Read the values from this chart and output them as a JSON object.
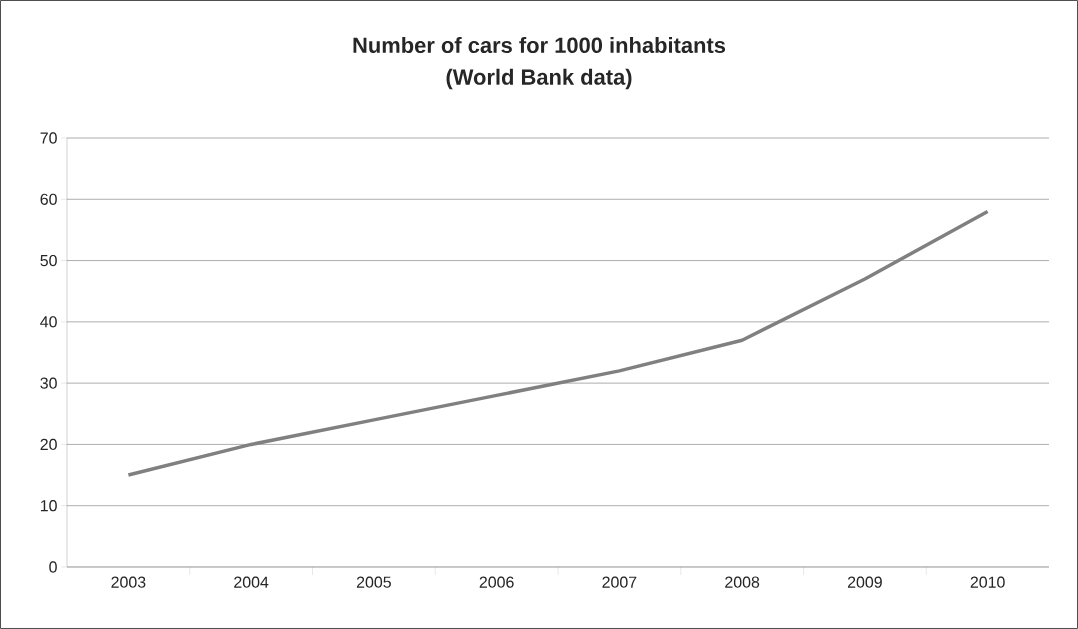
{
  "chart_data": {
    "type": "line",
    "title": "Number of cars for 1000 inhabitants",
    "subtitle": "(World Bank data)",
    "categories": [
      "2003",
      "2004",
      "2005",
      "2006",
      "2007",
      "2008",
      "2009",
      "2010"
    ],
    "values": [
      15,
      20,
      24,
      28,
      32,
      37,
      47,
      58
    ],
    "color": "#808080",
    "ylim": [
      0,
      70
    ],
    "yticks": [
      0,
      10,
      20,
      30,
      40,
      50,
      60,
      70
    ],
    "grid": "y",
    "marker": "none",
    "line_style": "solid"
  }
}
